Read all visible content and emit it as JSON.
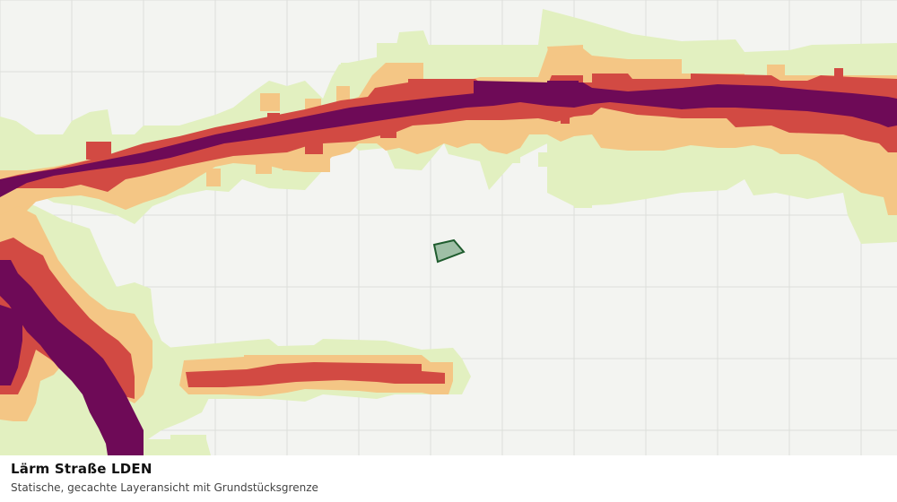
{
  "caption": {
    "title": "Lärm Straße LDEN",
    "subtitle": "Statische, gecachte Layeransicht mit Grundstücksgrenze"
  },
  "legend_colors": {
    "background": "#f3f4f1",
    "grid": "#dcdedb",
    "level_1": "#e2f0c0",
    "level_2": "#f4c685",
    "level_3": "#d24a43",
    "level_4": "#6e0a57",
    "parcel_fill": "#9fbfa6",
    "parcel_stroke": "#1f5c2e"
  }
}
